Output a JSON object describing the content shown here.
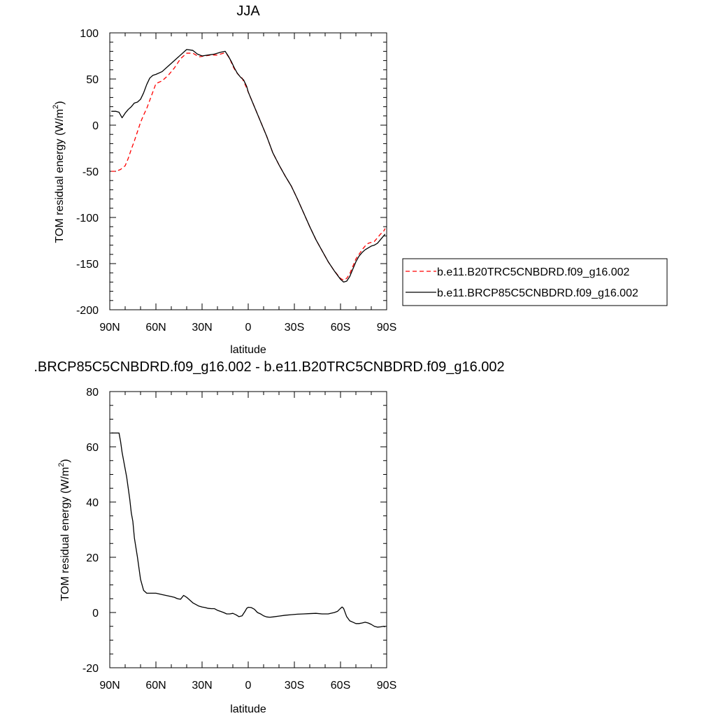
{
  "chart_data": [
    {
      "type": "line",
      "title": "JJA",
      "xlabel": "latitude",
      "ylabel": "TOM residual energy (W/m",
      "ylabel_sup": "2",
      "ylabel_close": ")",
      "xlim": [
        90,
        -90
      ],
      "ylim": [
        -200,
        100
      ],
      "x_major_ticks": [
        90,
        60,
        30,
        0,
        -30,
        -60,
        -90
      ],
      "x_tick_labels": [
        "90N",
        "60N",
        "30N",
        "0",
        "30S",
        "60S",
        "90S"
      ],
      "y_major_ticks": [
        -200,
        -150,
        -100,
        -50,
        0,
        50,
        100
      ],
      "y_tick_labels": [
        "-200",
        "-150",
        "-100",
        "-50",
        "0",
        "50",
        "100"
      ],
      "legend_position": "right",
      "series": [
        {
          "name": "b.e11.B20TRC5CNBDRD.f09_g16.002",
          "color": "#ff0000",
          "dash": "dashed",
          "x": [
            89,
            86,
            83,
            80,
            78,
            76,
            74,
            72,
            70,
            68,
            66,
            64,
            62,
            60,
            56,
            52,
            48,
            44,
            40,
            36,
            32,
            28,
            24,
            20,
            16,
            14,
            12,
            10,
            8,
            6,
            4,
            2,
            0,
            -4,
            -8,
            -12,
            -16,
            -20,
            -24,
            -28,
            -32,
            -36,
            -40,
            -44,
            -48,
            -52,
            -56,
            -60,
            -62,
            -64,
            -66,
            -68,
            -70,
            -72,
            -74,
            -76,
            -78,
            -80,
            -82,
            -84,
            -86,
            -88,
            -89
          ],
          "y": [
            -50,
            -50,
            -48,
            -44,
            -36,
            -26,
            -17,
            -7,
            3,
            11,
            18,
            27,
            36,
            45,
            48,
            54,
            62,
            72,
            78,
            78,
            74,
            75,
            76,
            76,
            78,
            77,
            72,
            64,
            58,
            54,
            51,
            44,
            36,
            20,
            4,
            -12,
            -30,
            -43,
            -55,
            -66,
            -80,
            -95,
            -110,
            -124,
            -136,
            -148,
            -158,
            -166,
            -168,
            -166,
            -161,
            -153,
            -145,
            -140,
            -135,
            -131,
            -128,
            -127,
            -126,
            -122,
            -118,
            -115,
            -112
          ]
        },
        {
          "name": "b.e11.BRCP85C5CNBDRD.f09_g16.002",
          "color": "#000000",
          "dash": "solid",
          "x": [
            89,
            86,
            84,
            82,
            80,
            78,
            76,
            74,
            72,
            70,
            68,
            66,
            64,
            62,
            60,
            56,
            52,
            48,
            44,
            40,
            36,
            33,
            30,
            26,
            22,
            18,
            15,
            13,
            11,
            9,
            7,
            5,
            3,
            1,
            0,
            -4,
            -8,
            -12,
            -16,
            -20,
            -24,
            -28,
            -32,
            -36,
            -40,
            -44,
            -48,
            -52,
            -56,
            -60,
            -62,
            -64,
            -66,
            -68,
            -70,
            -72,
            -74,
            -76,
            -78,
            -80,
            -82,
            -84,
            -86,
            -88,
            -89
          ],
          "y": [
            15,
            15,
            14,
            8,
            13,
            17,
            20,
            24,
            25,
            28,
            35,
            44,
            51,
            54,
            55,
            58,
            64,
            70,
            76,
            82,
            81,
            77,
            75,
            76,
            77,
            79,
            80,
            75,
            69,
            62,
            56,
            52,
            49,
            42,
            36,
            20,
            4,
            -12,
            -30,
            -43,
            -55,
            -66,
            -80,
            -95,
            -110,
            -124,
            -136,
            -148,
            -158,
            -167,
            -170,
            -169,
            -164,
            -156,
            -148,
            -142,
            -138,
            -135,
            -133,
            -131,
            -130,
            -128,
            -124,
            -120,
            -118
          ]
        }
      ]
    },
    {
      "type": "line",
      "title": ".BRCP85C5CNBDRD.f09_g16.002 - b.e11.B20TRC5CNBDRD.f09_g16.002",
      "xlabel": "latitude",
      "ylabel": "TOM residual energy (W/m",
      "ylabel_sup": "2",
      "ylabel_close": ")",
      "xlim": [
        90,
        -90
      ],
      "ylim": [
        -20,
        80
      ],
      "x_major_ticks": [
        90,
        60,
        30,
        0,
        -30,
        -60,
        -90
      ],
      "x_tick_labels": [
        "90N",
        "60N",
        "30N",
        "0",
        "30S",
        "60S",
        "90S"
      ],
      "y_major_ticks": [
        -20,
        0,
        20,
        40,
        60,
        80
      ],
      "y_tick_labels": [
        "-20",
        "0",
        "20",
        "40",
        "60",
        "80"
      ],
      "series": [
        {
          "color": "#000000",
          "dash": "solid",
          "x": [
            89,
            86,
            84,
            83,
            82,
            81,
            80,
            79,
            78,
            77,
            76,
            75,
            74,
            72,
            70,
            68,
            66,
            64,
            62,
            60,
            56,
            52,
            48,
            46,
            44,
            42,
            40,
            36,
            32,
            30,
            28,
            26,
            24,
            22,
            20,
            18,
            16,
            14,
            12,
            10,
            8,
            6,
            4,
            2,
            1,
            0,
            -2,
            -4,
            -6,
            -8,
            -10,
            -12,
            -14,
            -16,
            -20,
            -24,
            -28,
            -32,
            -36,
            -40,
            -44,
            -48,
            -52,
            -56,
            -58,
            -60,
            -61,
            -62,
            -64,
            -66,
            -68,
            -70,
            -72,
            -74,
            -76,
            -78,
            -80,
            -82,
            -84,
            -86,
            -88,
            -89
          ],
          "y": [
            65,
            65,
            65,
            62,
            58,
            55,
            52,
            49,
            45,
            41,
            36,
            33,
            27,
            20,
            12,
            8,
            7,
            7,
            7,
            7,
            6.5,
            6,
            5.5,
            5,
            4.8,
            6.2,
            5.5,
            3.5,
            2.3,
            2,
            1.8,
            1.5,
            1.4,
            1.4,
            0.8,
            0.4,
            0,
            -0.5,
            -0.5,
            -0.3,
            -0.8,
            -1.5,
            -1.2,
            0.5,
            1.5,
            1.9,
            1.8,
            1.2,
            0,
            -0.5,
            -1.2,
            -1.6,
            -1.7,
            -1.6,
            -1.3,
            -1,
            -0.8,
            -0.6,
            -0.5,
            -0.4,
            -0.3,
            -0.5,
            -0.5,
            0,
            0.4,
            1.5,
            2,
            1.5,
            -1.5,
            -3,
            -3.5,
            -4,
            -4,
            -3.8,
            -3.5,
            -3.8,
            -4.3,
            -5,
            -5.3,
            -5.2,
            -5,
            -5.2
          ]
        }
      ]
    }
  ]
}
